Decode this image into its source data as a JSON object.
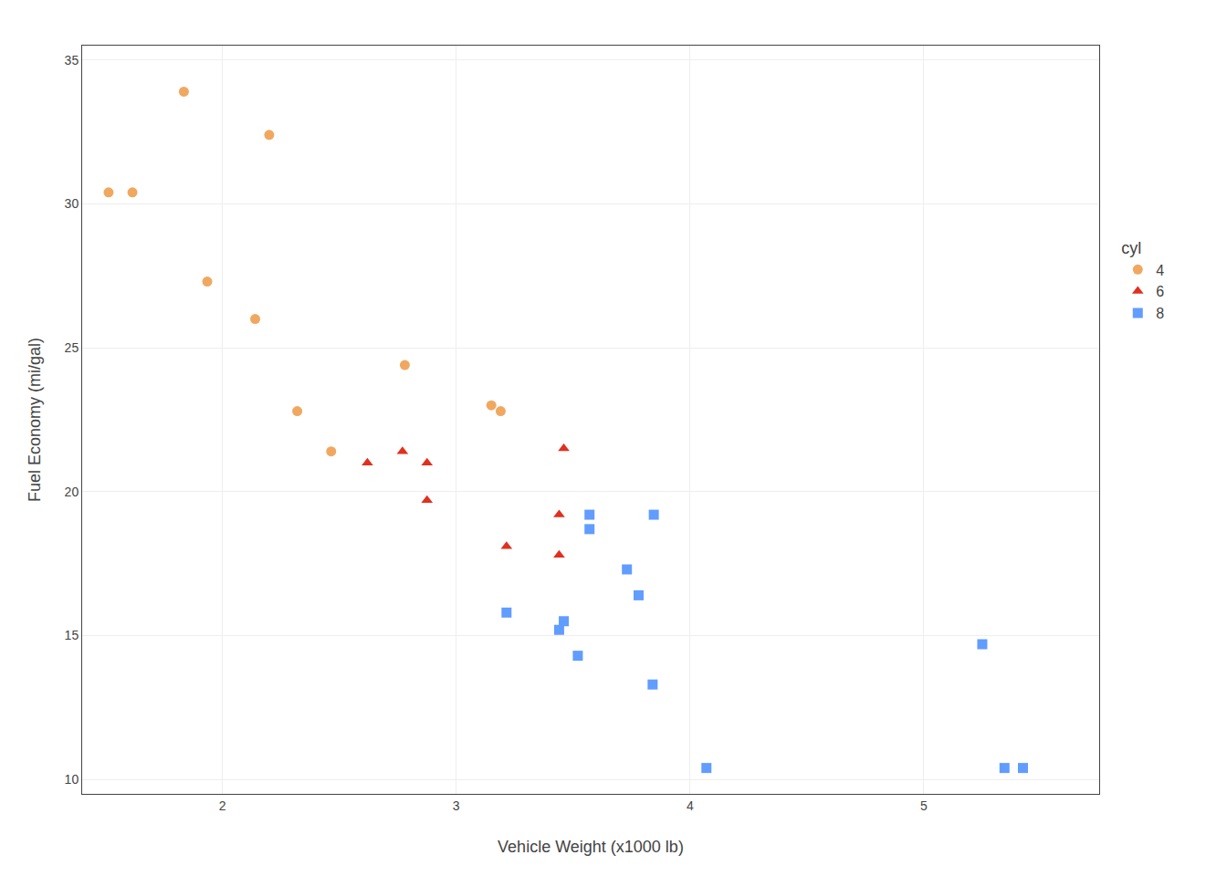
{
  "chart_data": {
    "type": "scatter",
    "xlabel": "Vehicle Weight (x1000 lb)",
    "ylabel": "Fuel Economy (mi/gal)",
    "legend_title": "cyl",
    "xlim": [
      1.4,
      5.75
    ],
    "ylim": [
      9.5,
      35.5
    ],
    "xticks": [
      2,
      3,
      4,
      5
    ],
    "yticks": [
      10,
      15,
      20,
      25,
      30,
      35
    ],
    "grid": true,
    "legend": "right",
    "series": [
      {
        "name": "4",
        "color": "#F0A860",
        "marker": "circle",
        "x": [
          1.513,
          1.615,
          1.835,
          1.935,
          2.14,
          2.2,
          2.32,
          2.465,
          2.78,
          3.19,
          3.15
        ],
        "values": [
          30.4,
          30.4,
          33.9,
          27.3,
          26.0,
          32.4,
          22.8,
          21.4,
          24.4,
          22.8,
          23.0
        ]
      },
      {
        "name": "6",
        "color": "#E03020",
        "marker": "triangle",
        "x": [
          2.62,
          2.875,
          2.77,
          2.875,
          3.215,
          3.46,
          3.44,
          3.44
        ],
        "values": [
          21.0,
          21.0,
          21.4,
          19.7,
          18.1,
          21.5,
          19.2,
          17.8
        ]
      },
      {
        "name": "8",
        "color": "#619CFF",
        "marker": "square",
        "x": [
          3.215,
          3.44,
          3.46,
          3.52,
          3.57,
          3.57,
          3.73,
          3.78,
          3.84,
          3.845,
          4.07,
          5.25,
          5.345,
          5.424
        ],
        "values": [
          15.8,
          15.2,
          15.5,
          14.3,
          19.2,
          18.7,
          17.3,
          16.4,
          13.3,
          19.2,
          10.4,
          14.7,
          10.4,
          10.4
        ]
      }
    ]
  }
}
